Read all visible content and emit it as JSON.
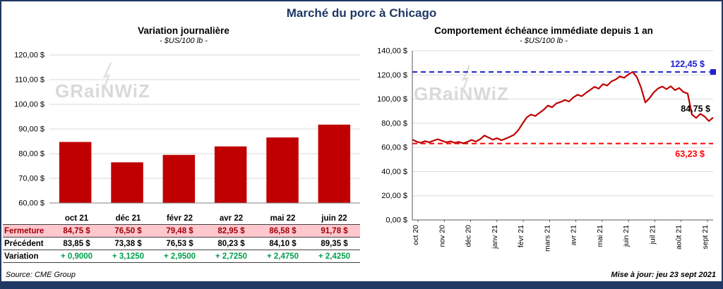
{
  "page": {
    "title": "Marché du porc à Chicago",
    "source": "Source: CME Group",
    "updated": "Mise à jour: jeu 23 sept 2021",
    "watermark": "GRaiNWiZ"
  },
  "colors": {
    "frame": "#1F3864",
    "bar": "#C00000",
    "line": "#C00000",
    "reference_high": "#2020CC",
    "reference_low": "#FF0000",
    "highlight_bg": "#FFC7CE",
    "highlight_text": "#9C0006",
    "positive": "#00A04C"
  },
  "chart_data": [
    {
      "type": "bar",
      "title": "Variation journalière",
      "subtitle": "- $US/100 lb -",
      "categories": [
        "oct 21",
        "déc 21",
        "févr 22",
        "avr 22",
        "mai 22",
        "juin 22"
      ],
      "values": [
        84.75,
        76.5,
        79.48,
        82.95,
        86.58,
        91.78
      ],
      "bar_color": "#C00000",
      "ylim": [
        60,
        120
      ],
      "ytick_step": 10,
      "ytick_labels": [
        "60,00 $",
        "70,00 $",
        "80,00 $",
        "90,00 $",
        "100,00 $",
        "110,00 $",
        "120,00 $"
      ],
      "grid": true,
      "table": {
        "rows": [
          {
            "label": "Fermeture",
            "values": [
              "84,75  $",
              "76,50  $",
              "79,48  $",
              "82,95  $",
              "86,58  $",
              "91,78  $"
            ],
            "highlight": true
          },
          {
            "label": "Précédent",
            "values": [
              "83,85  $",
              "73,38  $",
              "76,53  $",
              "80,23  $",
              "84,10  $",
              "89,35  $"
            ]
          },
          {
            "label": "Variation",
            "values": [
              "+ 0,9000",
              "+ 3,1250",
              "+ 2,9500",
              "+ 2,7250",
              "+ 2,4750",
              "+ 2,4250"
            ],
            "positive": true
          }
        ]
      }
    },
    {
      "type": "line",
      "title": "Comportement échéance immédiate depuis 1 an",
      "subtitle": "- $US/100 lb -",
      "x_labels": [
        "oct 20",
        "nov 20",
        "déc 20",
        "janv 21",
        "févr 21",
        "mars 21",
        "avr 21",
        "mai 21",
        "juin 21",
        "juil 21",
        "août 21",
        "sept 21"
      ],
      "ylim": [
        0,
        140
      ],
      "ytick_step": 20,
      "ytick_labels": [
        "0,00 $",
        "20,00 $",
        "40,00 $",
        "60,00 $",
        "80,00 $",
        "100,00 $",
        "120,00 $",
        "140,00 $"
      ],
      "grid": true,
      "line_color": "#C00000",
      "values": [
        66.5,
        64.8,
        63.8,
        65.2,
        64.2,
        65.6,
        66.8,
        65.5,
        64.2,
        65.0,
        63.8,
        64.6,
        63.4,
        64.6,
        66.2,
        64.8,
        66.8,
        69.8,
        68.2,
        66.4,
        67.6,
        66.0,
        67.2,
        68.8,
        70.4,
        74.2,
        79.6,
        84.8,
        87.2,
        86.0,
        88.6,
        91.2,
        94.6,
        93.2,
        96.4,
        97.6,
        99.2,
        98.0,
        101.4,
        103.6,
        102.4,
        105.2,
        107.6,
        110.2,
        108.6,
        112.4,
        111.2,
        114.6,
        116.2,
        118.8,
        117.6,
        120.4,
        122.45,
        118.2,
        109.4,
        97.2,
        100.8,
        105.6,
        108.8,
        110.4,
        108.2,
        110.6,
        107.4,
        109.2,
        105.8,
        104.6,
        87.2,
        84.4,
        87.8,
        85.6,
        81.8,
        84.75
      ],
      "reference_lines": [
        {
          "value": 122.45,
          "label": "122,45 $",
          "color": "#2020CC",
          "style": "dashed"
        },
        {
          "value": 63.23,
          "label": "63,23 $",
          "color": "#FF0000",
          "style": "dashed"
        }
      ],
      "end_label": {
        "value": 84.75,
        "label": "84,75 $",
        "color": "#000000"
      }
    }
  ]
}
